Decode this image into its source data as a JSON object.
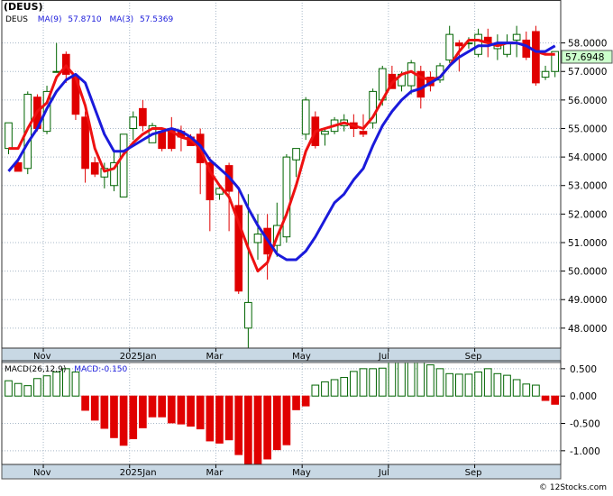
{
  "symbol_title": "(DEUS)",
  "price_legend": {
    "symbol": "DEUS",
    "ma9_label": "MA(9)",
    "ma9_value": "57.8710",
    "ma3_label": "MA(3)",
    "ma3_value": "57.5369"
  },
  "macd_legend": {
    "label": "MACD(26,12,9)",
    "value_label": "MACD:-0.150"
  },
  "last_price_label": "57.6948",
  "watermark": "© 12Stocks.com",
  "colors": {
    "up": "#006400",
    "down": "#e00000",
    "ma9": "#1a1adb",
    "ma3": "#ee1111",
    "grid": "#a8b8c8",
    "axis_bg": "#c8d8e4",
    "price_box": "#ccffcc"
  },
  "chart_data": [
    {
      "type": "candlestick",
      "title": "(DEUS)",
      "y_ticks": [
        "48.0000",
        "49.0000",
        "50.0000",
        "51.0000",
        "52.0000",
        "53.0000",
        "54.0000",
        "55.0000",
        "56.0000",
        "57.0000",
        "58.0000"
      ],
      "ylim": [
        47.3,
        59.0
      ],
      "x_ticks": [
        {
          "label": "Nov",
          "index": 4
        },
        {
          "label": "2025Jan",
          "index": 13
        },
        {
          "label": "Mar",
          "index": 22
        },
        {
          "label": "May",
          "index": 31
        },
        {
          "label": "Jul",
          "index": 40
        },
        {
          "label": "Sep",
          "index": 49
        }
      ],
      "candles": [
        [
          54.3,
          55.2,
          54.1,
          55.2
        ],
        [
          53.8,
          53.9,
          53.5,
          53.5
        ],
        [
          53.6,
          56.3,
          53.4,
          56.2
        ],
        [
          56.1,
          56.2,
          54.9,
          55.0
        ],
        [
          54.9,
          56.5,
          54.8,
          56.3
        ],
        [
          57.0,
          58.0,
          57.0,
          57.0
        ],
        [
          57.6,
          57.7,
          56.6,
          56.9
        ],
        [
          56.8,
          56.9,
          55.3,
          55.5
        ],
        [
          55.4,
          55.6,
          53.1,
          53.6
        ],
        [
          53.8,
          54.0,
          53.3,
          53.4
        ],
        [
          53.3,
          53.8,
          52.9,
          53.6
        ],
        [
          53.0,
          54.2,
          52.8,
          53.8
        ],
        [
          52.6,
          54.7,
          52.6,
          54.8
        ],
        [
          55.0,
          55.6,
          54.6,
          55.4
        ],
        [
          55.7,
          56.0,
          54.9,
          55.1
        ],
        [
          54.5,
          55.2,
          54.5,
          55.1
        ],
        [
          54.9,
          55.0,
          54.2,
          54.3
        ],
        [
          55.0,
          55.4,
          54.2,
          54.3
        ],
        [
          54.9,
          55.1,
          54.2,
          54.7
        ],
        [
          54.7,
          54.8,
          54.4,
          54.4
        ],
        [
          54.8,
          55.0,
          52.7,
          53.8
        ],
        [
          53.8,
          54.0,
          51.4,
          52.5
        ],
        [
          52.7,
          53.0,
          52.5,
          52.9
        ],
        [
          53.7,
          53.8,
          51.4,
          52.8
        ],
        [
          52.3,
          52.9,
          49.2,
          49.3
        ],
        [
          48.0,
          52.7,
          47.2,
          48.9
        ],
        [
          51.0,
          52.0,
          50.4,
          51.3
        ],
        [
          51.5,
          52.0,
          49.7,
          50.6
        ],
        [
          50.9,
          52.4,
          50.5,
          51.6
        ],
        [
          51.2,
          54.1,
          51.0,
          54.0
        ],
        [
          53.9,
          54.2,
          53.3,
          54.3
        ],
        [
          54.8,
          56.1,
          54.6,
          56.0
        ],
        [
          55.4,
          55.6,
          54.3,
          54.4
        ],
        [
          54.8,
          55.0,
          54.4,
          54.9
        ],
        [
          54.9,
          55.4,
          54.8,
          55.3
        ],
        [
          55.1,
          55.5,
          54.9,
          55.3
        ],
        [
          55.2,
          55.5,
          54.7,
          55.0
        ],
        [
          54.9,
          55.5,
          54.7,
          54.8
        ],
        [
          55.2,
          56.4,
          55.0,
          56.3
        ],
        [
          56.0,
          57.2,
          55.8,
          57.1
        ],
        [
          56.9,
          57.2,
          56.4,
          56.4
        ],
        [
          56.5,
          57.0,
          56.3,
          56.9
        ],
        [
          56.5,
          57.4,
          56.2,
          57.3
        ],
        [
          57.0,
          57.2,
          55.7,
          56.1
        ],
        [
          56.8,
          57.0,
          56.3,
          56.5
        ],
        [
          56.7,
          57.3,
          56.6,
          57.2
        ],
        [
          57.4,
          58.6,
          57.3,
          58.3
        ],
        [
          58.0,
          58.1,
          57.0,
          57.9
        ],
        [
          58.0,
          58.2,
          57.8,
          58.0
        ],
        [
          57.6,
          58.5,
          57.5,
          58.3
        ],
        [
          58.2,
          58.5,
          57.5,
          58.0
        ],
        [
          57.8,
          58.3,
          57.4,
          57.9
        ],
        [
          57.6,
          58.3,
          57.5,
          58.0
        ],
        [
          58.1,
          58.6,
          57.5,
          58.3
        ],
        [
          58.1,
          58.4,
          57.4,
          57.5
        ],
        [
          58.4,
          58.6,
          56.5,
          56.6
        ],
        [
          56.8,
          57.2,
          56.7,
          57.0
        ],
        [
          57.0,
          57.7,
          56.8,
          57.7
        ]
      ],
      "series": [
        {
          "name": "MA(9)",
          "values": [
            53.5,
            53.9,
            54.5,
            55.0,
            55.7,
            56.3,
            56.7,
            56.9,
            56.6,
            55.7,
            54.8,
            54.2,
            54.2,
            54.4,
            54.6,
            54.8,
            54.9,
            55.0,
            54.9,
            54.7,
            54.4,
            53.9,
            53.6,
            53.3,
            52.9,
            52.2,
            51.6,
            51.1,
            50.6,
            50.4,
            50.4,
            50.7,
            51.2,
            51.8,
            52.4,
            52.7,
            53.2,
            53.6,
            54.4,
            55.1,
            55.6,
            56.0,
            56.3,
            56.4,
            56.6,
            56.8,
            57.2,
            57.5,
            57.7,
            57.9,
            57.9,
            58.0,
            58.0,
            58.0,
            57.9,
            57.7,
            57.7,
            57.9
          ]
        },
        {
          "name": "MA(3)",
          "values": [
            54.3,
            54.3,
            55.0,
            55.6,
            55.9,
            56.8,
            57.2,
            56.8,
            55.8,
            54.3,
            53.5,
            53.6,
            54.1,
            54.5,
            54.8,
            55.0,
            55.0,
            54.9,
            54.7,
            54.6,
            54.3,
            53.5,
            53.0,
            52.6,
            51.7,
            50.8,
            50.0,
            50.3,
            51.2,
            52.0,
            53.0,
            54.2,
            54.9,
            55.0,
            55.1,
            55.2,
            55.1,
            55.0,
            55.4,
            56.0,
            56.6,
            56.9,
            57.0,
            56.8,
            56.7,
            56.8,
            57.2,
            57.7,
            58.1,
            58.1,
            58.0,
            57.9,
            58.0,
            58.0,
            57.9,
            57.7,
            57.6,
            57.6
          ]
        }
      ]
    },
    {
      "type": "bar",
      "title": "MACD(26,12,9)",
      "y_ticks": [
        "0.500",
        "0.000",
        "-0.500",
        "-1.000"
      ],
      "ylim": [
        -1.25,
        0.58
      ],
      "x_ticks": [
        {
          "label": "Nov",
          "index": 4
        },
        {
          "label": "2025Jan",
          "index": 13
        },
        {
          "label": "Mar",
          "index": 22
        },
        {
          "label": "May",
          "index": 31
        },
        {
          "label": "Jul",
          "index": 40
        },
        {
          "label": "Sep",
          "index": 49
        }
      ],
      "values": [
        0.28,
        0.23,
        0.19,
        0.32,
        0.37,
        0.44,
        0.5,
        0.44,
        -0.26,
        -0.44,
        -0.59,
        -0.76,
        -0.9,
        -0.78,
        -0.58,
        -0.38,
        -0.38,
        -0.49,
        -0.51,
        -0.55,
        -0.6,
        -0.82,
        -0.86,
        -0.8,
        -1.07,
        -1.25,
        -1.29,
        -1.15,
        -0.98,
        -0.89,
        -0.25,
        -0.18,
        0.2,
        0.26,
        0.3,
        0.34,
        0.45,
        0.5,
        0.5,
        0.51,
        0.7,
        0.77,
        0.75,
        0.69,
        0.57,
        0.5,
        0.41,
        0.4,
        0.4,
        0.44,
        0.5,
        0.41,
        0.38,
        0.3,
        0.22,
        0.2,
        -0.08,
        -0.15
      ]
    }
  ]
}
